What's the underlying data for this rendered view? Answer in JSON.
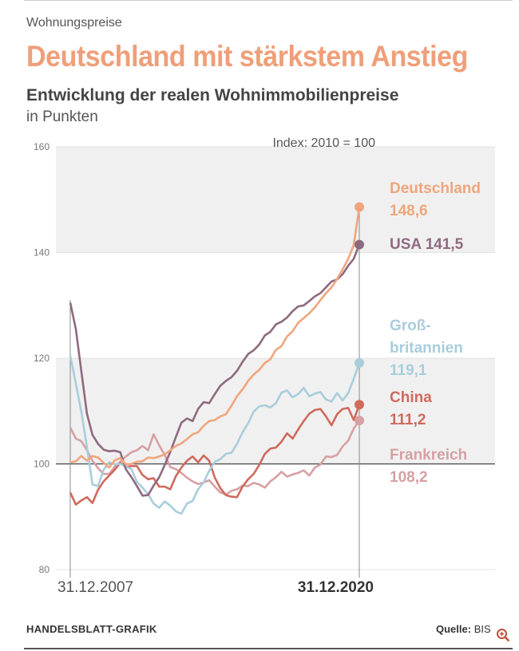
{
  "kicker": "Wohnungspreise",
  "headline": "Deutschland mit stärkstem Anstieg",
  "subtitle": "Entwicklung der realen Wohnimmobilienpreise",
  "unit": "in Punkten",
  "footer": {
    "source_label": "HANDELSBLATT-GRAFIK",
    "source_prefix": "Quelle:",
    "source_value": "BIS"
  },
  "icons": {
    "zoom": "zoom-in-icon"
  },
  "colors": {
    "Deutschland": "#f0a57c",
    "USA": "#8e6a7f",
    "Großbritannien": "#a9cddb",
    "China": "#cf6a5d",
    "Frankreich": "#d7a0a3",
    "band": "#f0f0f0",
    "axis": "#999999"
  },
  "chart_data": {
    "type": "line",
    "note": "Index: 2010 = 100",
    "ylim": [
      80,
      160
    ],
    "yticks": [
      80,
      100,
      120,
      140,
      160
    ],
    "x_start_label": "31.12.2007",
    "x_end_label": "31.12.2020",
    "x": [
      2007.75,
      2008,
      2008.25,
      2008.5,
      2008.75,
      2009,
      2009.25,
      2009.5,
      2009.75,
      2010,
      2010.25,
      2010.5,
      2010.75,
      2011,
      2011.25,
      2011.5,
      2011.75,
      2012,
      2012.25,
      2012.5,
      2012.75,
      2013,
      2013.25,
      2013.5,
      2013.75,
      2014,
      2014.25,
      2014.5,
      2014.75,
      2015,
      2015.25,
      2015.5,
      2015.75,
      2016,
      2016.25,
      2016.5,
      2016.75,
      2017,
      2017.25,
      2017.5,
      2017.75,
      2018,
      2018.25,
      2018.5,
      2018.75,
      2019,
      2019.25,
      2019.5,
      2019.75,
      2020,
      2020.25,
      2020.5,
      2020.75
    ],
    "series": [
      {
        "name": "Deutschland",
        "end_label": "148,6",
        "values": [
          100.3,
          100.5,
          101.5,
          100.6,
          101.5,
          101.2,
          100.2,
          99.3,
          100.7,
          101.1,
          99.9,
          100.0,
          100.4,
          100.5,
          101.2,
          101.1,
          101.4,
          101.8,
          102.6,
          103.4,
          103.9,
          104.7,
          105.6,
          106.0,
          107.2,
          108.1,
          108.3,
          109.0,
          109.4,
          111.0,
          112.8,
          114.1,
          115.7,
          116.9,
          117.8,
          119.1,
          119.8,
          121.6,
          122.3,
          124.1,
          125.1,
          126.7,
          127.6,
          128.5,
          129.6,
          131.0,
          132.3,
          133.4,
          135.0,
          136.8,
          138.8,
          141.4,
          148.6
        ]
      },
      {
        "name": "USA",
        "end_label": "141,5",
        "values": [
          130.5,
          125.5,
          117.5,
          109.5,
          105.5,
          103.8,
          102.7,
          102.4,
          102.5,
          102.2,
          99.0,
          97.5,
          95.8,
          94.0,
          94.1,
          95.9,
          97.5,
          99.8,
          102.3,
          105.1,
          107.8,
          108.6,
          108.1,
          110.4,
          111.7,
          111.5,
          113.2,
          114.8,
          115.7,
          116.4,
          117.6,
          119.3,
          120.8,
          121.5,
          122.6,
          124.3,
          125.0,
          126.4,
          126.9,
          127.7,
          128.9,
          129.8,
          130.0,
          130.8,
          131.7,
          132.3,
          133.4,
          134.5,
          134.9,
          135.9,
          137.5,
          138.8,
          141.5
        ]
      },
      {
        "name": "Großbritannien",
        "end_label": "119,1",
        "values": [
          120.4,
          115.2,
          109.8,
          103.2,
          96.1,
          95.8,
          98.9,
          100.3,
          99.9,
          100.0,
          99.5,
          99.0,
          96.6,
          95.5,
          94.3,
          92.5,
          91.7,
          92.9,
          92.1,
          91.0,
          90.6,
          92.5,
          93.0,
          95.2,
          96.5,
          98.7,
          100.4,
          100.9,
          101.9,
          102.1,
          103.8,
          106.0,
          107.7,
          109.9,
          110.9,
          111.1,
          110.7,
          111.5,
          113.5,
          113.9,
          112.6,
          113.2,
          114.4,
          112.8,
          113.3,
          113.6,
          112.2,
          111.8,
          113.4,
          112.0,
          113.4,
          116.1,
          119.1
        ]
      },
      {
        "name": "China",
        "end_label": "111,2",
        "values": [
          94.6,
          92.3,
          93.1,
          93.7,
          92.6,
          95.1,
          96.7,
          97.8,
          98.9,
          100.2,
          99.4,
          99.6,
          99.6,
          97.9,
          97.1,
          97.3,
          95.7,
          95.7,
          95.2,
          97.7,
          99.3,
          100.6,
          101.4,
          100.3,
          101.6,
          100.6,
          97.4,
          95.4,
          94.1,
          93.8,
          93.7,
          95.7,
          97.1,
          98.1,
          99.8,
          101.9,
          102.9,
          103.1,
          104.2,
          105.8,
          104.8,
          106.5,
          108.1,
          109.5,
          110.2,
          110.4,
          109.0,
          107.3,
          109.4,
          110.4,
          110.6,
          108.3,
          111.2
        ]
      },
      {
        "name": "Frankreich",
        "end_label": "108,2",
        "values": [
          106.9,
          104.8,
          104.3,
          102.6,
          100.6,
          99.2,
          98.1,
          98.1,
          99.5,
          100.4,
          101.4,
          102.2,
          102.6,
          103.4,
          102.6,
          105.6,
          103.5,
          101.7,
          99.4,
          99.0,
          98.3,
          97.4,
          96.7,
          96.2,
          96.5,
          96.9,
          95.7,
          94.6,
          94.2,
          94.9,
          95.2,
          95.9,
          95.8,
          96.4,
          96.1,
          95.5,
          96.7,
          97.5,
          98.5,
          97.6,
          98.0,
          98.3,
          98.8,
          97.8,
          99.3,
          99.9,
          101.4,
          101.3,
          101.7,
          103.3,
          104.4,
          106.7,
          108.2
        ]
      }
    ],
    "bands": [
      [
        140,
        160
      ],
      [
        100,
        120
      ]
    ],
    "grid": false,
    "legend": "right, as end labels"
  }
}
